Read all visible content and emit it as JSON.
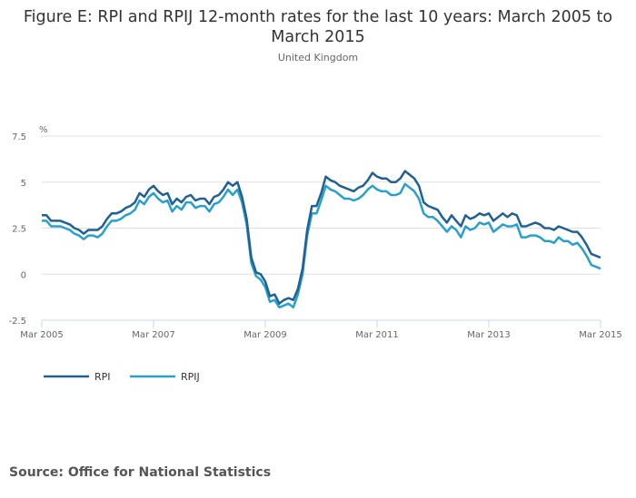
{
  "chart_data": {
    "type": "line",
    "title": "Figure E: RPI and RPIJ 12-month rates for the last 10 years: March 2005 to March 2015",
    "subtitle": "United Kingdom",
    "ylabel": "%",
    "xlabel": "",
    "ylim": [
      -2.5,
      7.5
    ],
    "yticks": [
      -2.5,
      0,
      2.5,
      5,
      7.5
    ],
    "ytick_labels": [
      "-2.5",
      "0",
      "2.5",
      "5",
      "7.5"
    ],
    "xtick_labels": [
      "Mar 2005",
      "Mar 2007",
      "Mar 2009",
      "Mar 2011",
      "Mar 2013",
      "Mar 2015"
    ],
    "xtick_month_index": [
      0,
      24,
      48,
      72,
      96,
      120
    ],
    "x_start": "Mar 2005",
    "x_end": "Mar 2015",
    "frequency": "monthly",
    "grid": true,
    "legend_position": "bottom-left",
    "series": [
      {
        "name": "RPI",
        "color": "#206095",
        "values": [
          3.2,
          3.2,
          2.9,
          2.9,
          2.9,
          2.8,
          2.7,
          2.5,
          2.4,
          2.2,
          2.4,
          2.4,
          2.4,
          2.6,
          3.0,
          3.3,
          3.3,
          3.4,
          3.6,
          3.7,
          3.9,
          4.4,
          4.2,
          4.6,
          4.8,
          4.5,
          4.3,
          4.4,
          3.8,
          4.1,
          3.9,
          4.2,
          4.3,
          4.0,
          4.1,
          4.1,
          3.8,
          4.2,
          4.3,
          4.6,
          5.0,
          4.8,
          5.0,
          4.2,
          3.0,
          0.9,
          0.1,
          0.0,
          -0.4,
          -1.2,
          -1.1,
          -1.6,
          -1.4,
          -1.3,
          -1.4,
          -0.8,
          0.3,
          2.4,
          3.7,
          3.7,
          4.4,
          5.3,
          5.1,
          5.0,
          4.8,
          4.7,
          4.6,
          4.5,
          4.7,
          4.8,
          5.1,
          5.5,
          5.3,
          5.2,
          5.2,
          5.0,
          5.0,
          5.2,
          5.6,
          5.4,
          5.2,
          4.8,
          3.9,
          3.7,
          3.6,
          3.5,
          3.1,
          2.8,
          3.2,
          2.9,
          2.6,
          3.2,
          3.0,
          3.1,
          3.3,
          3.2,
          3.3,
          2.9,
          3.1,
          3.3,
          3.1,
          3.3,
          3.2,
          2.6,
          2.6,
          2.7,
          2.8,
          2.7,
          2.5,
          2.5,
          2.4,
          2.6,
          2.5,
          2.4,
          2.3,
          2.3,
          2.0,
          1.6,
          1.1,
          1.0,
          0.9
        ]
      },
      {
        "name": "RPIJ",
        "color": "#27a0cc",
        "values": [
          2.9,
          2.9,
          2.6,
          2.6,
          2.6,
          2.5,
          2.4,
          2.2,
          2.1,
          1.9,
          2.1,
          2.1,
          2.0,
          2.2,
          2.6,
          2.9,
          2.9,
          3.0,
          3.2,
          3.3,
          3.5,
          4.0,
          3.8,
          4.2,
          4.4,
          4.1,
          3.9,
          4.0,
          3.4,
          3.7,
          3.5,
          3.9,
          3.9,
          3.6,
          3.7,
          3.7,
          3.4,
          3.8,
          3.9,
          4.2,
          4.6,
          4.3,
          4.6,
          3.9,
          2.7,
          0.6,
          -0.1,
          -0.3,
          -0.7,
          -1.5,
          -1.4,
          -1.8,
          -1.7,
          -1.6,
          -1.8,
          -1.1,
          0.0,
          2.1,
          3.3,
          3.3,
          4.0,
          4.8,
          4.6,
          4.5,
          4.3,
          4.1,
          4.1,
          4.0,
          4.1,
          4.3,
          4.6,
          4.8,
          4.6,
          4.5,
          4.5,
          4.3,
          4.3,
          4.4,
          4.9,
          4.7,
          4.5,
          4.1,
          3.3,
          3.1,
          3.1,
          2.9,
          2.6,
          2.3,
          2.6,
          2.4,
          2.0,
          2.6,
          2.4,
          2.5,
          2.8,
          2.7,
          2.8,
          2.3,
          2.5,
          2.7,
          2.6,
          2.6,
          2.7,
          2.0,
          2.0,
          2.1,
          2.1,
          2.0,
          1.8,
          1.8,
          1.7,
          2.0,
          1.8,
          1.8,
          1.6,
          1.7,
          1.4,
          1.0,
          0.5,
          0.4,
          0.3
        ]
      }
    ],
    "source": "Source: Office for National Statistics"
  }
}
